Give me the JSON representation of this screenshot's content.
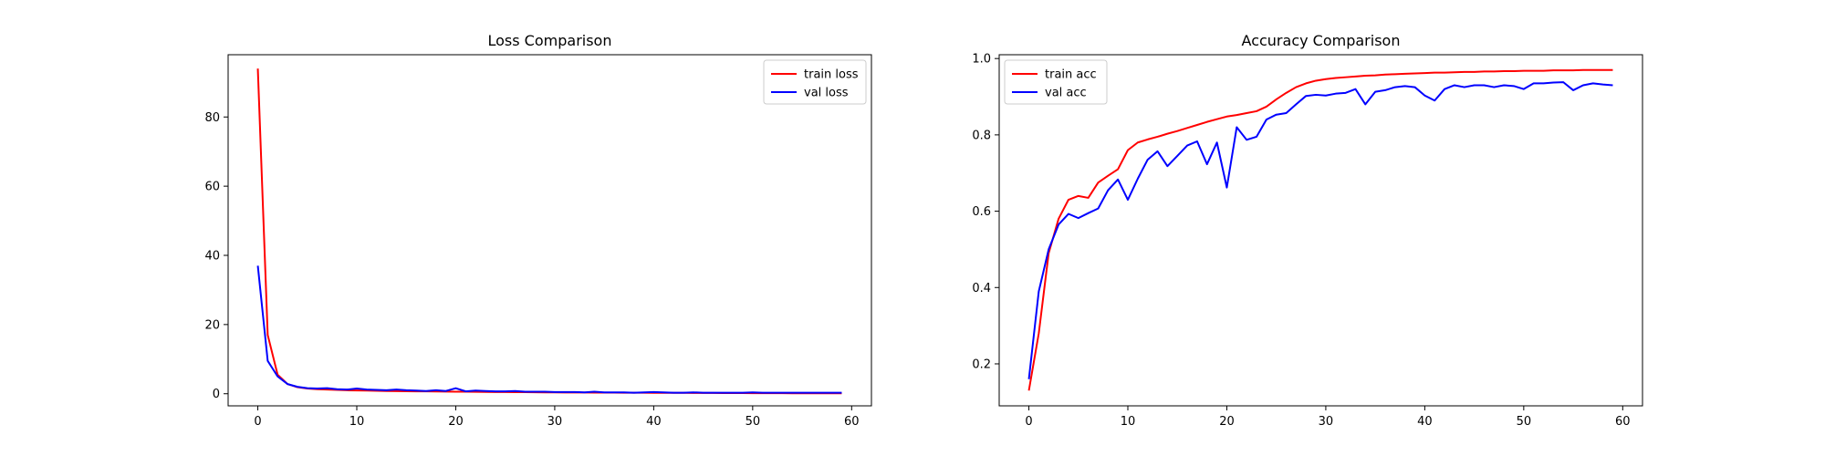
{
  "chart_data": [
    {
      "type": "line",
      "title": "Loss Comparison",
      "xlabel": "",
      "ylabel": "",
      "xlim": [
        -3,
        62
      ],
      "ylim": [
        -3.5,
        98
      ],
      "xticks": [
        0,
        10,
        20,
        30,
        40,
        50,
        60
      ],
      "yticks": [
        0,
        20,
        40,
        60,
        80
      ],
      "grid": false,
      "legend_placement": "top-right",
      "x": [
        0,
        1,
        2,
        3,
        4,
        5,
        6,
        7,
        8,
        9,
        10,
        11,
        12,
        13,
        14,
        15,
        16,
        17,
        18,
        19,
        20,
        21,
        22,
        23,
        24,
        25,
        26,
        27,
        28,
        29,
        30,
        31,
        32,
        33,
        34,
        35,
        36,
        37,
        38,
        39,
        40,
        41,
        42,
        43,
        44,
        45,
        46,
        47,
        48,
        49,
        50,
        51,
        52,
        53,
        54,
        55,
        56,
        57,
        58,
        59
      ],
      "series": [
        {
          "name": "train loss",
          "color": "#ff0000",
          "values": [
            94,
            17,
            5.5,
            2.8,
            1.9,
            1.5,
            1.3,
            1.2,
            1.1,
            1.0,
            0.95,
            0.9,
            0.85,
            0.8,
            0.75,
            0.72,
            0.7,
            0.68,
            0.65,
            0.62,
            0.6,
            0.58,
            0.55,
            0.53,
            0.5,
            0.48,
            0.46,
            0.44,
            0.42,
            0.4,
            0.38,
            0.36,
            0.35,
            0.34,
            0.33,
            0.32,
            0.31,
            0.3,
            0.29,
            0.28,
            0.27,
            0.26,
            0.25,
            0.24,
            0.23,
            0.22,
            0.21,
            0.2,
            0.19,
            0.18,
            0.17,
            0.16,
            0.15,
            0.15,
            0.14,
            0.14,
            0.13,
            0.13,
            0.12,
            0.12
          ]
        },
        {
          "name": "val loss",
          "color": "#0000ff",
          "values": [
            37,
            9.5,
            5,
            2.8,
            2,
            1.6,
            1.5,
            1.6,
            1.3,
            1.2,
            1.5,
            1.2,
            1.1,
            1,
            1.2,
            1,
            0.9,
            0.8,
            1,
            0.8,
            1.6,
            0.7,
            0.9,
            0.8,
            0.7,
            0.7,
            0.8,
            0.6,
            0.6,
            0.6,
            0.5,
            0.5,
            0.5,
            0.4,
            0.6,
            0.4,
            0.4,
            0.4,
            0.3,
            0.4,
            0.5,
            0.4,
            0.3,
            0.3,
            0.4,
            0.3,
            0.3,
            0.3,
            0.3,
            0.3,
            0.4,
            0.3,
            0.3,
            0.3,
            0.3,
            0.3,
            0.3,
            0.3,
            0.3,
            0.3
          ]
        }
      ]
    },
    {
      "type": "line",
      "title": "Accuracy Comparison",
      "xlabel": "",
      "ylabel": "",
      "xlim": [
        -3,
        62
      ],
      "ylim": [
        0.09,
        1.01
      ],
      "xticks": [
        0,
        10,
        20,
        30,
        40,
        50,
        60
      ],
      "yticks": [
        0.2,
        0.4,
        0.6,
        0.8,
        1.0
      ],
      "ytick_labels": [
        "0.2",
        "0.4",
        "0.6",
        "0.8",
        "1.0"
      ],
      "grid": false,
      "legend_placement": "top-left",
      "x": [
        0,
        1,
        2,
        3,
        4,
        5,
        6,
        7,
        8,
        9,
        10,
        11,
        12,
        13,
        14,
        15,
        16,
        17,
        18,
        19,
        20,
        21,
        22,
        23,
        24,
        25,
        26,
        27,
        28,
        29,
        30,
        31,
        32,
        33,
        34,
        35,
        36,
        37,
        38,
        39,
        40,
        41,
        42,
        43,
        44,
        45,
        46,
        47,
        48,
        49,
        50,
        51,
        52,
        53,
        54,
        55,
        56,
        57,
        58,
        59
      ],
      "series": [
        {
          "name": "train acc",
          "color": "#ff0000",
          "values": [
            0.13,
            0.28,
            0.49,
            0.58,
            0.63,
            0.64,
            0.635,
            0.675,
            0.693,
            0.71,
            0.76,
            0.78,
            0.788,
            0.795,
            0.803,
            0.81,
            0.818,
            0.826,
            0.834,
            0.841,
            0.848,
            0.852,
            0.857,
            0.862,
            0.874,
            0.893,
            0.91,
            0.925,
            0.935,
            0.942,
            0.946,
            0.949,
            0.951,
            0.953,
            0.955,
            0.956,
            0.958,
            0.959,
            0.96,
            0.961,
            0.962,
            0.963,
            0.963,
            0.964,
            0.965,
            0.965,
            0.966,
            0.966,
            0.967,
            0.967,
            0.968,
            0.968,
            0.968,
            0.969,
            0.969,
            0.969,
            0.97,
            0.97,
            0.97,
            0.97
          ]
        },
        {
          "name": "val acc",
          "color": "#0000ff",
          "values": [
            0.16,
            0.39,
            0.5,
            0.565,
            0.593,
            0.582,
            0.595,
            0.607,
            0.655,
            0.683,
            0.63,
            0.685,
            0.735,
            0.757,
            0.718,
            0.745,
            0.772,
            0.783,
            0.723,
            0.78,
            0.662,
            0.82,
            0.787,
            0.795,
            0.84,
            0.853,
            0.857,
            0.88,
            0.902,
            0.905,
            0.903,
            0.908,
            0.91,
            0.92,
            0.88,
            0.913,
            0.917,
            0.925,
            0.928,
            0.925,
            0.903,
            0.89,
            0.92,
            0.93,
            0.925,
            0.93,
            0.93,
            0.925,
            0.93,
            0.928,
            0.92,
            0.935,
            0.935,
            0.937,
            0.938,
            0.917,
            0.93,
            0.935,
            0.932,
            0.93
          ]
        }
      ]
    }
  ]
}
